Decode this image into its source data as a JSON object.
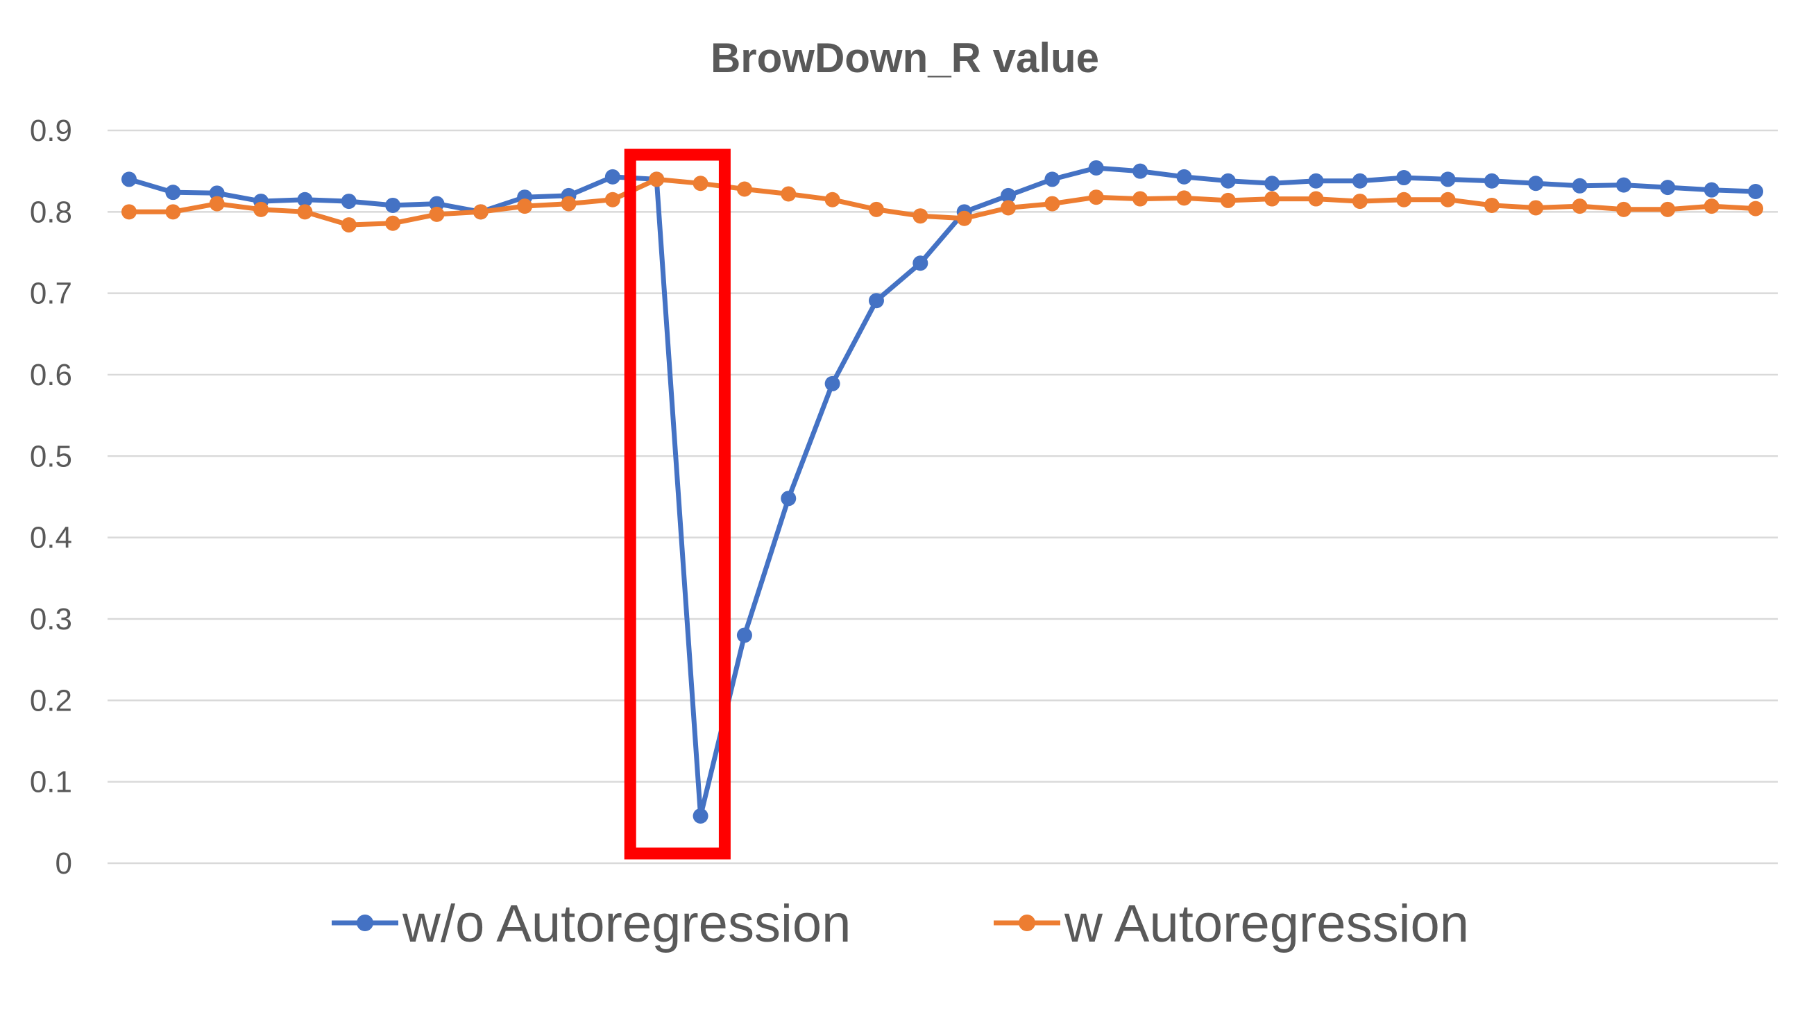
{
  "chart_data": {
    "type": "line",
    "title": "BrowDown_R value",
    "xlabel": "",
    "ylabel": "",
    "ylim": [
      0,
      0.9
    ],
    "yticks": [
      "0",
      "0.1",
      "0.2",
      "0.3",
      "0.4",
      "0.5",
      "0.6",
      "0.7",
      "0.8",
      "0.9"
    ],
    "grid": true,
    "legend_position": "bottom",
    "x": [
      1,
      2,
      3,
      4,
      5,
      6,
      7,
      8,
      9,
      10,
      11,
      12,
      13,
      14,
      15,
      16,
      17,
      18,
      19,
      20,
      21,
      22,
      23,
      24,
      25,
      26,
      27,
      28,
      29,
      30,
      31,
      32,
      33,
      34,
      35,
      36,
      37,
      38
    ],
    "series": [
      {
        "name": "w/o Autoregression",
        "color": "#4472C4",
        "values": [
          0.84,
          0.824,
          0.823,
          0.813,
          0.815,
          0.813,
          0.808,
          0.81,
          0.8,
          0.818,
          0.82,
          0.843,
          0.84,
          0.058,
          0.28,
          0.448,
          0.589,
          0.691,
          0.737,
          0.8,
          0.82,
          0.84,
          0.854,
          0.85,
          0.843,
          0.838,
          0.835,
          0.838,
          0.838,
          0.842,
          0.84,
          0.838,
          0.835,
          0.832,
          0.833,
          0.83,
          0.827,
          0.825
        ]
      },
      {
        "name": "w Autoregression",
        "color": "#ED7D31",
        "values": [
          0.8,
          0.8,
          0.81,
          0.803,
          0.8,
          0.784,
          0.786,
          0.797,
          0.8,
          0.807,
          0.81,
          0.815,
          0.84,
          0.835,
          0.828,
          0.822,
          0.815,
          0.803,
          0.795,
          0.792,
          0.805,
          0.81,
          0.818,
          0.816,
          0.817,
          0.814,
          0.816,
          0.816,
          0.813,
          0.815,
          0.815,
          0.808,
          0.805,
          0.807,
          0.803,
          0.803,
          0.807,
          0.804
        ]
      }
    ],
    "highlight": {
      "color": "#FF0000",
      "x_indices": [
        13,
        14
      ]
    }
  }
}
